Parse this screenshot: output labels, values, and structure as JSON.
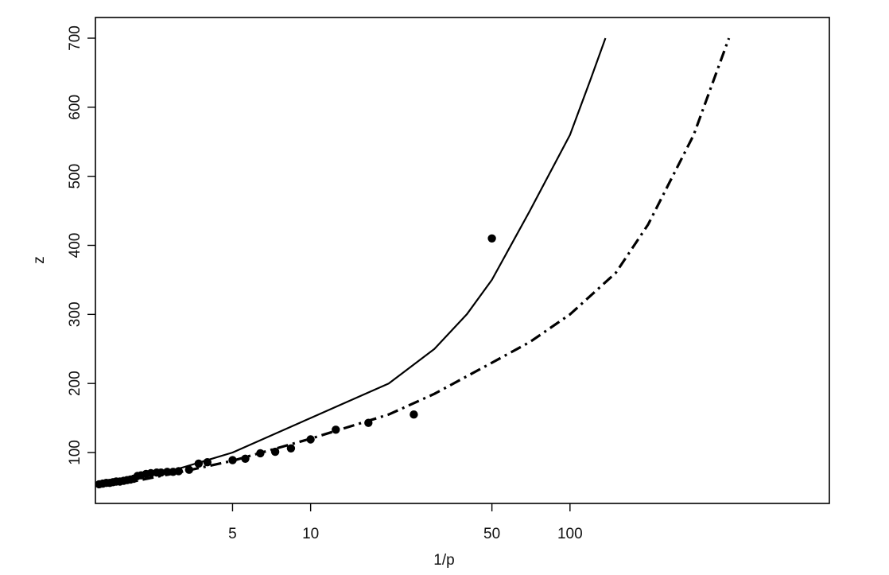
{
  "chart_data": {
    "type": "line",
    "title": "",
    "xlabel": "1/p",
    "ylabel": "z",
    "x_scale": "log",
    "xlim": [
      1.5,
      1000
    ],
    "ylim": [
      50,
      700
    ],
    "x_ticks": [
      5,
      10,
      50,
      100
    ],
    "x_tick_labels": [
      "5",
      "10",
      "50",
      "100"
    ],
    "y_ticks": [
      100,
      200,
      300,
      400,
      500,
      600,
      700
    ],
    "y_tick_labels": [
      "100",
      "200",
      "300",
      "400",
      "500",
      "600",
      "700"
    ],
    "grid": false,
    "legend": "none",
    "series": [
      {
        "type": "line",
        "style": "solid",
        "color": "#000000",
        "x": [
          1.5,
          2,
          3,
          5,
          10,
          20,
          30,
          40,
          50,
          70,
          100,
          120,
          137
        ],
        "y": [
          53,
          60,
          75,
          100,
          150,
          200,
          250,
          300,
          350,
          450,
          560,
          640,
          700
        ]
      },
      {
        "type": "line",
        "style": "dash-dot",
        "color": "#000000",
        "x": [
          1.5,
          2,
          3,
          5,
          10,
          20,
          30,
          50,
          70,
          100,
          150,
          200,
          300,
          410
        ],
        "y": [
          52,
          57,
          70,
          88,
          120,
          155,
          185,
          230,
          260,
          300,
          360,
          430,
          560,
          700
        ]
      },
      {
        "type": "scatter",
        "marker": "filled-circle",
        "color": "#000000",
        "x": [
          1.53,
          1.58,
          1.63,
          1.68,
          1.73,
          1.78,
          1.84,
          1.9,
          1.96,
          2.02,
          2.08,
          2.15,
          2.22,
          2.32,
          2.42,
          2.55,
          2.65,
          2.8,
          2.95,
          3.1,
          3.4,
          3.7,
          4.0,
          5.0,
          5.6,
          6.4,
          7.3,
          8.4,
          10.0,
          12.5,
          16.7,
          25.0,
          50.0
        ],
        "y": [
          54,
          55,
          56,
          56,
          57,
          58,
          58,
          59,
          60,
          61,
          62,
          66,
          67,
          69,
          70,
          71,
          71,
          72,
          72,
          73,
          75,
          84,
          86,
          89,
          91,
          99,
          101,
          106,
          119,
          133,
          143,
          155,
          410
        ]
      }
    ]
  }
}
